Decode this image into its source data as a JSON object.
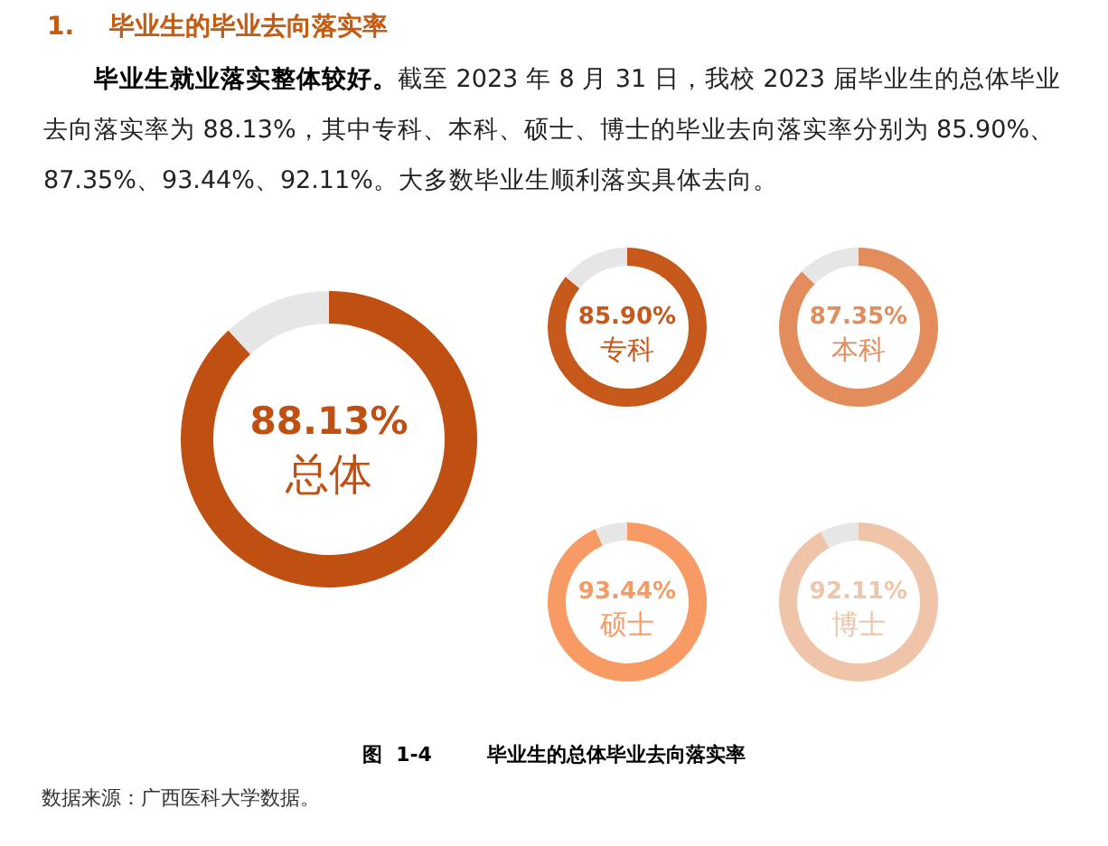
{
  "chart_data": [
    {
      "type": "donut",
      "title": "1.    毕业生的毕业去向落实率",
      "annotations": [
        "毕业生就业落实整体较好。",
        "截至 2023 年 8 月 31 日，我校 2023 届毕业生的总体毕业去向落实率为 88.13%，其中专科、本科、硕士、博士的毕业去向落实率分别为 85.90%、87.35%、93.44%、92.11%。大多数毕业生顺利落实具体去向。",
        "图  1-4        毕业生的总体毕业去向落实率",
        "数据来源：广西医科大学数据。"
      ],
      "categories": [
        "总体",
        null
      ],
      "values": [
        88.13,
        11.87
      ],
      "colors": [
        "#bf5012",
        "#e6e6e6"
      ],
      "value_labels": [
        "88.13%",
        null
      ]
    },
    {
      "type": "donut",
      "categories": [
        "专科",
        null
      ],
      "values": [
        85.9,
        14.1
      ],
      "colors": [
        "#c5581a",
        "#e6e6e6"
      ],
      "value_labels": [
        "85.90%",
        null
      ]
    },
    {
      "type": "donut",
      "categories": [
        "本科",
        null
      ],
      "values": [
        87.35,
        12.65
      ],
      "colors": [
        "#e38c5c",
        "#e6e6e6"
      ],
      "value_labels": [
        "87.35%",
        null
      ]
    },
    {
      "type": "donut",
      "categories": [
        "硕士",
        null
      ],
      "values": [
        93.44,
        6.56
      ],
      "colors": [
        "#f79a63",
        "#e6e6e6"
      ],
      "value_labels": [
        "93.44%",
        null
      ]
    },
    {
      "type": "donut",
      "categories": [
        "博士",
        null
      ],
      "values": [
        92.11,
        7.89
      ],
      "colors": [
        "#efc4a8",
        "#e6e6e6"
      ],
      "value_labels": [
        "92.11%",
        null
      ]
    }
  ]
}
